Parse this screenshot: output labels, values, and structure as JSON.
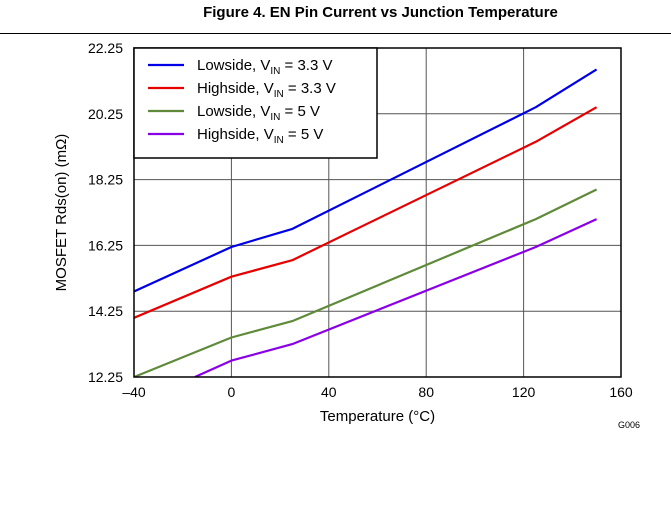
{
  "figure": {
    "title": "Figure 4. EN Pin Current vs Junction Temperature",
    "code": "G006"
  },
  "chart_data": {
    "type": "line",
    "xlabel": "Temperature (°C)",
    "ylabel": "MOSFET Rds(on) (mΩ)",
    "xlim": [
      -40,
      160
    ],
    "ylim": [
      12.25,
      22.25
    ],
    "x_ticks": [
      -40,
      0,
      40,
      80,
      120,
      160
    ],
    "x_tick_labels": [
      "–40",
      "0",
      "40",
      "80",
      "120",
      "160"
    ],
    "y_ticks": [
      12.25,
      14.25,
      16.25,
      18.25,
      20.25,
      22.25
    ],
    "y_tick_labels": [
      "12.25",
      "14.25",
      "16.25",
      "18.25",
      "20.25",
      "22.25"
    ],
    "grid": true,
    "legend_position": "top-left",
    "series": [
      {
        "name": "Lowside, VIN = 3.3 V",
        "legend_main": "Lowside, V",
        "legend_sub": "IN",
        "legend_tail": " = 3.3 V",
        "color": "#0000e6",
        "x": [
          -40,
          0,
          25,
          125,
          150
        ],
        "y": [
          14.85,
          16.2,
          16.75,
          20.45,
          21.6
        ]
      },
      {
        "name": "Highside, VIN = 3.3 V",
        "legend_main": "Highside, V",
        "legend_sub": "IN",
        "legend_tail": " = 3.3 V",
        "color": "#e60000",
        "x": [
          -40,
          0,
          25,
          125,
          150
        ],
        "y": [
          14.05,
          15.3,
          15.8,
          19.4,
          20.45
        ]
      },
      {
        "name": "Lowside, VIN = 5 V",
        "legend_main": "Lowside, V",
        "legend_sub": "IN",
        "legend_tail": " = 5 V",
        "color": "#5f8a3a",
        "x": [
          -40,
          0,
          25,
          125,
          150
        ],
        "y": [
          12.25,
          13.45,
          13.95,
          17.05,
          17.95
        ]
      },
      {
        "name": "Highside, VIN = 5 V",
        "legend_main": "Highside, V",
        "legend_sub": "IN",
        "legend_tail": " = 5 V",
        "color": "#8a00e6",
        "x": [
          -15,
          0,
          25,
          125,
          150
        ],
        "y": [
          12.25,
          12.75,
          13.25,
          16.2,
          17.05
        ]
      }
    ]
  }
}
